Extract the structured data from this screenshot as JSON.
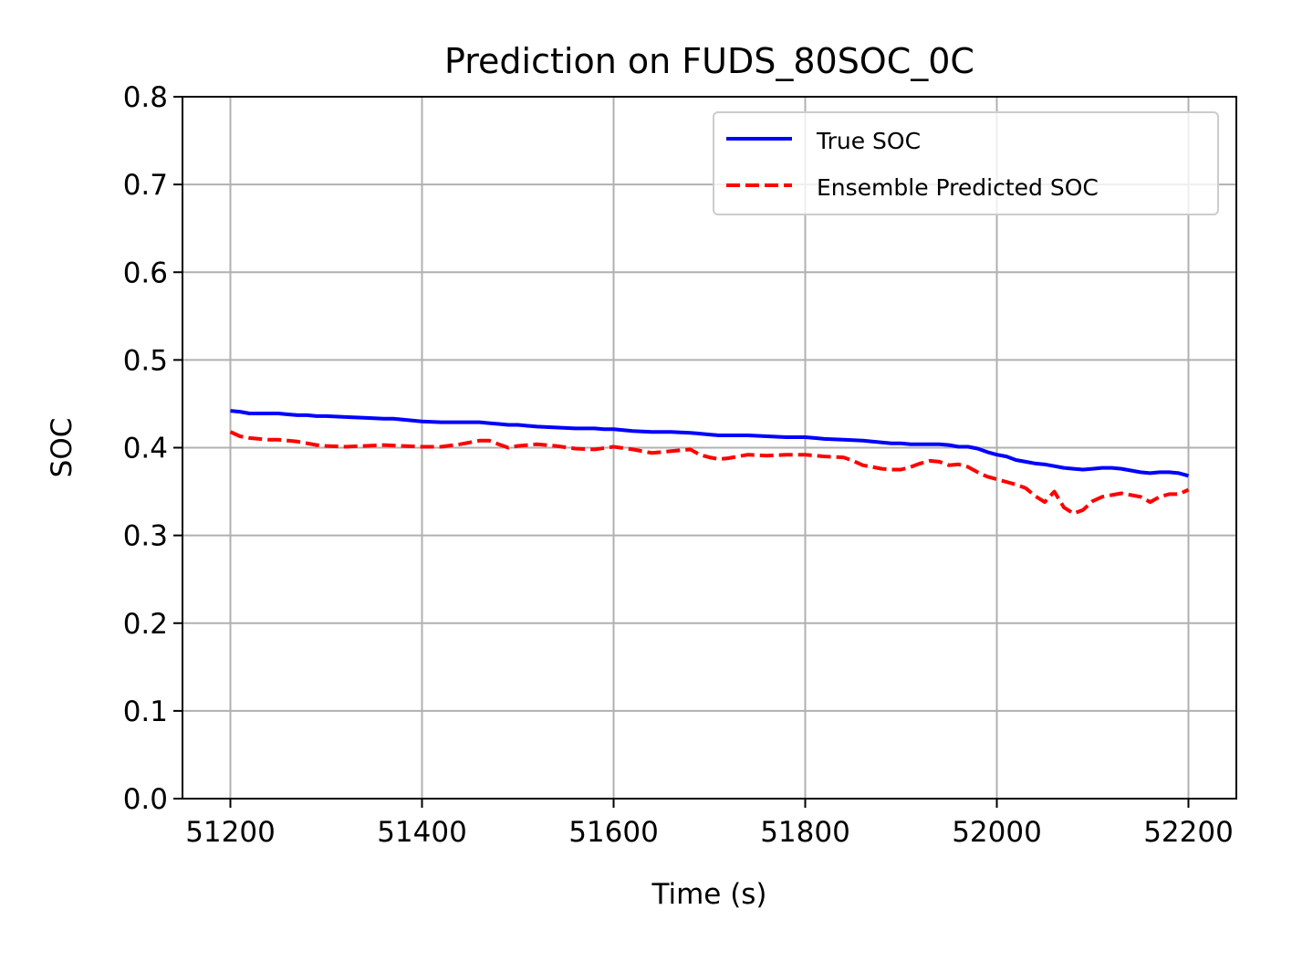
{
  "chart_data": {
    "type": "line",
    "title": "Prediction on FUDS_80SOC_0C",
    "xlabel": "Time (s)",
    "ylabel": "SOC",
    "xlim": [
      51150,
      52250
    ],
    "ylim": [
      0.0,
      0.8
    ],
    "xticks": [
      51200,
      51400,
      51600,
      51800,
      52000,
      52200
    ],
    "yticks": [
      0.0,
      0.1,
      0.2,
      0.3,
      0.4,
      0.5,
      0.6,
      0.7,
      0.8
    ],
    "xtick_labels": [
      "51200",
      "51400",
      "51600",
      "51800",
      "52000",
      "52200"
    ],
    "ytick_labels": [
      "0.0",
      "0.1",
      "0.2",
      "0.3",
      "0.4",
      "0.5",
      "0.6",
      "0.7",
      "0.8"
    ],
    "grid": true,
    "legend_position": "top-right",
    "series": [
      {
        "name": "True SOC",
        "color": "#0000ff",
        "line_style": "solid",
        "x": [
          51200,
          51210,
          51220,
          51230,
          51240,
          51250,
          51260,
          51270,
          51280,
          51290,
          51300,
          51320,
          51340,
          51360,
          51370,
          51380,
          51390,
          51400,
          51420,
          51440,
          51460,
          51470,
          51480,
          51490,
          51500,
          51510,
          51520,
          51540,
          51560,
          51580,
          51590,
          51600,
          51620,
          51640,
          51660,
          51680,
          51690,
          51700,
          51710,
          51720,
          51740,
          51760,
          51780,
          51800,
          51810,
          51820,
          51840,
          51860,
          51870,
          51880,
          51890,
          51900,
          51910,
          51920,
          51940,
          51950,
          51960,
          51970,
          51980,
          51990,
          52000,
          52010,
          52020,
          52030,
          52040,
          52050,
          52060,
          52070,
          52080,
          52090,
          52100,
          52110,
          52120,
          52130,
          52140,
          52150,
          52160,
          52170,
          52180,
          52190,
          52200
        ],
        "y": [
          0.442,
          0.441,
          0.439,
          0.439,
          0.439,
          0.439,
          0.438,
          0.437,
          0.437,
          0.436,
          0.436,
          0.435,
          0.434,
          0.433,
          0.433,
          0.432,
          0.431,
          0.43,
          0.429,
          0.429,
          0.429,
          0.428,
          0.427,
          0.426,
          0.426,
          0.425,
          0.424,
          0.423,
          0.422,
          0.422,
          0.421,
          0.421,
          0.419,
          0.418,
          0.418,
          0.417,
          0.416,
          0.415,
          0.414,
          0.414,
          0.414,
          0.413,
          0.412,
          0.412,
          0.411,
          0.41,
          0.409,
          0.408,
          0.407,
          0.406,
          0.405,
          0.405,
          0.404,
          0.404,
          0.404,
          0.403,
          0.401,
          0.401,
          0.399,
          0.395,
          0.392,
          0.39,
          0.386,
          0.384,
          0.382,
          0.381,
          0.379,
          0.377,
          0.376,
          0.375,
          0.376,
          0.377,
          0.377,
          0.376,
          0.374,
          0.372,
          0.371,
          0.372,
          0.372,
          0.371,
          0.368
        ]
      },
      {
        "name": "Ensemble Predicted SOC",
        "color": "#ff0000",
        "line_style": "dashed",
        "x": [
          51200,
          51210,
          51220,
          51230,
          51240,
          51250,
          51260,
          51270,
          51280,
          51290,
          51300,
          51320,
          51340,
          51360,
          51380,
          51400,
          51420,
          51440,
          51460,
          51470,
          51480,
          51490,
          51500,
          51520,
          51540,
          51560,
          51580,
          51600,
          51620,
          51640,
          51660,
          51680,
          51690,
          51700,
          51710,
          51720,
          51740,
          51760,
          51780,
          51800,
          51820,
          51840,
          51850,
          51860,
          51870,
          51880,
          51890,
          51900,
          51910,
          51920,
          51930,
          51940,
          51950,
          51960,
          51970,
          51980,
          51990,
          52000,
          52010,
          52020,
          52030,
          52040,
          52050,
          52060,
          52070,
          52080,
          52090,
          52100,
          52110,
          52120,
          52130,
          52140,
          52150,
          52160,
          52170,
          52180,
          52190,
          52200
        ],
        "y": [
          0.418,
          0.413,
          0.411,
          0.41,
          0.409,
          0.409,
          0.408,
          0.407,
          0.405,
          0.403,
          0.402,
          0.401,
          0.402,
          0.403,
          0.402,
          0.401,
          0.401,
          0.404,
          0.408,
          0.408,
          0.404,
          0.4,
          0.402,
          0.404,
          0.402,
          0.399,
          0.398,
          0.401,
          0.398,
          0.394,
          0.396,
          0.398,
          0.392,
          0.389,
          0.387,
          0.388,
          0.392,
          0.391,
          0.392,
          0.392,
          0.39,
          0.389,
          0.385,
          0.38,
          0.378,
          0.376,
          0.375,
          0.375,
          0.378,
          0.382,
          0.385,
          0.384,
          0.38,
          0.381,
          0.378,
          0.372,
          0.367,
          0.364,
          0.361,
          0.358,
          0.354,
          0.345,
          0.338,
          0.35,
          0.332,
          0.325,
          0.329,
          0.339,
          0.344,
          0.346,
          0.348,
          0.346,
          0.344,
          0.338,
          0.344,
          0.347,
          0.347,
          0.352
        ]
      }
    ]
  }
}
